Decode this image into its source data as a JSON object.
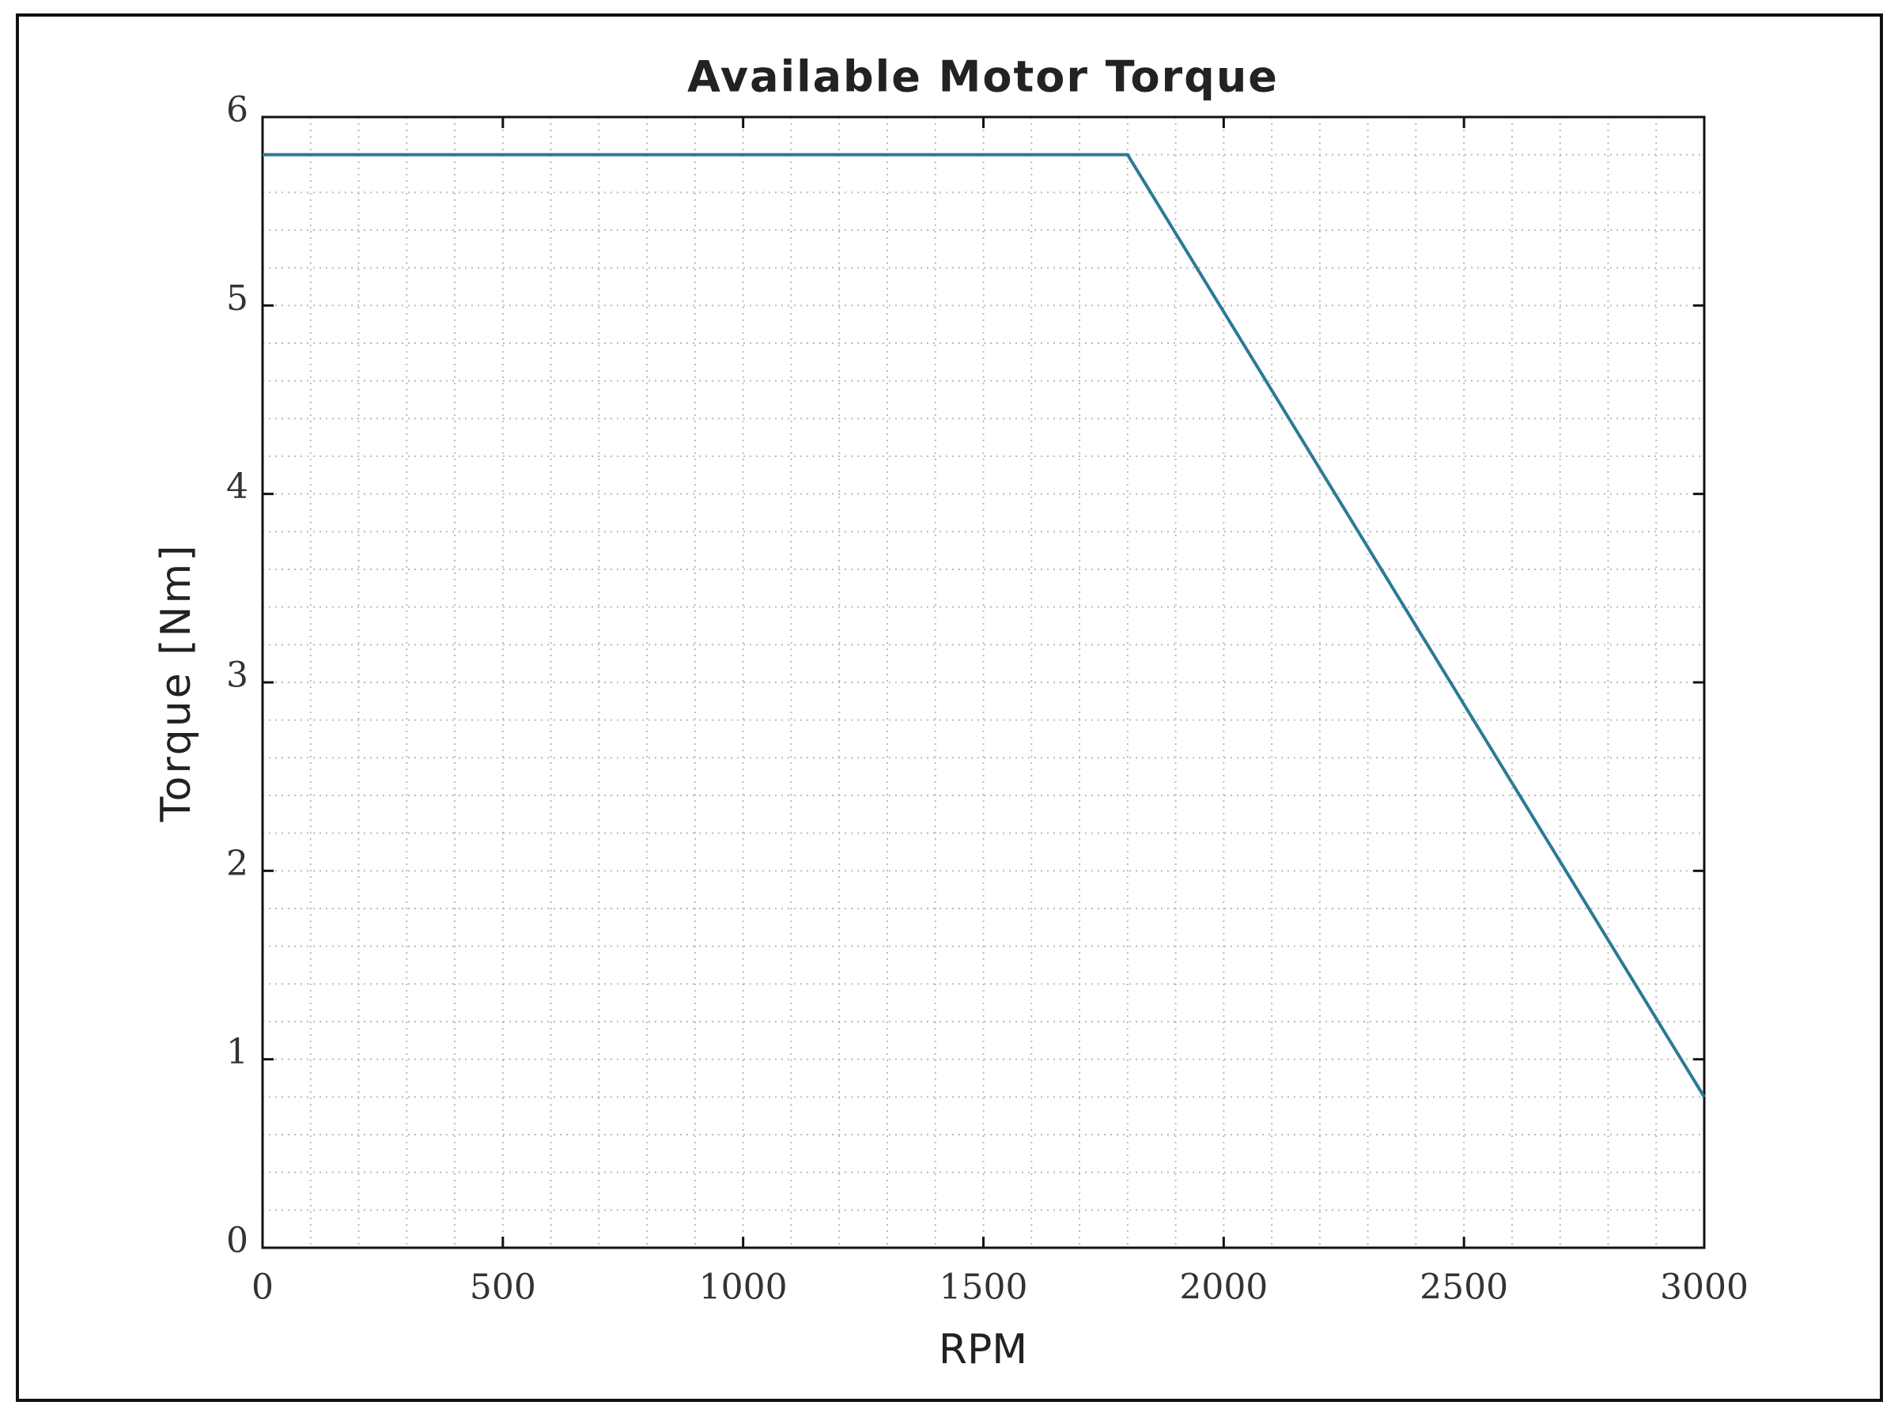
{
  "chart_data": {
    "type": "line",
    "title": "Available Motor Torque",
    "x_label": "RPM",
    "y_label": "Torque [Nm]",
    "x": [
      0,
      1800,
      3000
    ],
    "series": [
      {
        "name": "Torque",
        "color": "#2b7a94",
        "values": [
          5.8,
          5.8,
          0.8
        ]
      }
    ],
    "xlim": [
      0,
      3000
    ],
    "xticks": [
      0,
      500,
      1000,
      1500,
      2000,
      2500,
      3000
    ],
    "ylim": [
      0,
      6
    ],
    "yticks": [
      0,
      1,
      2,
      3,
      4,
      5,
      6
    ],
    "grid": true,
    "minor_grid": true,
    "legend": false
  }
}
